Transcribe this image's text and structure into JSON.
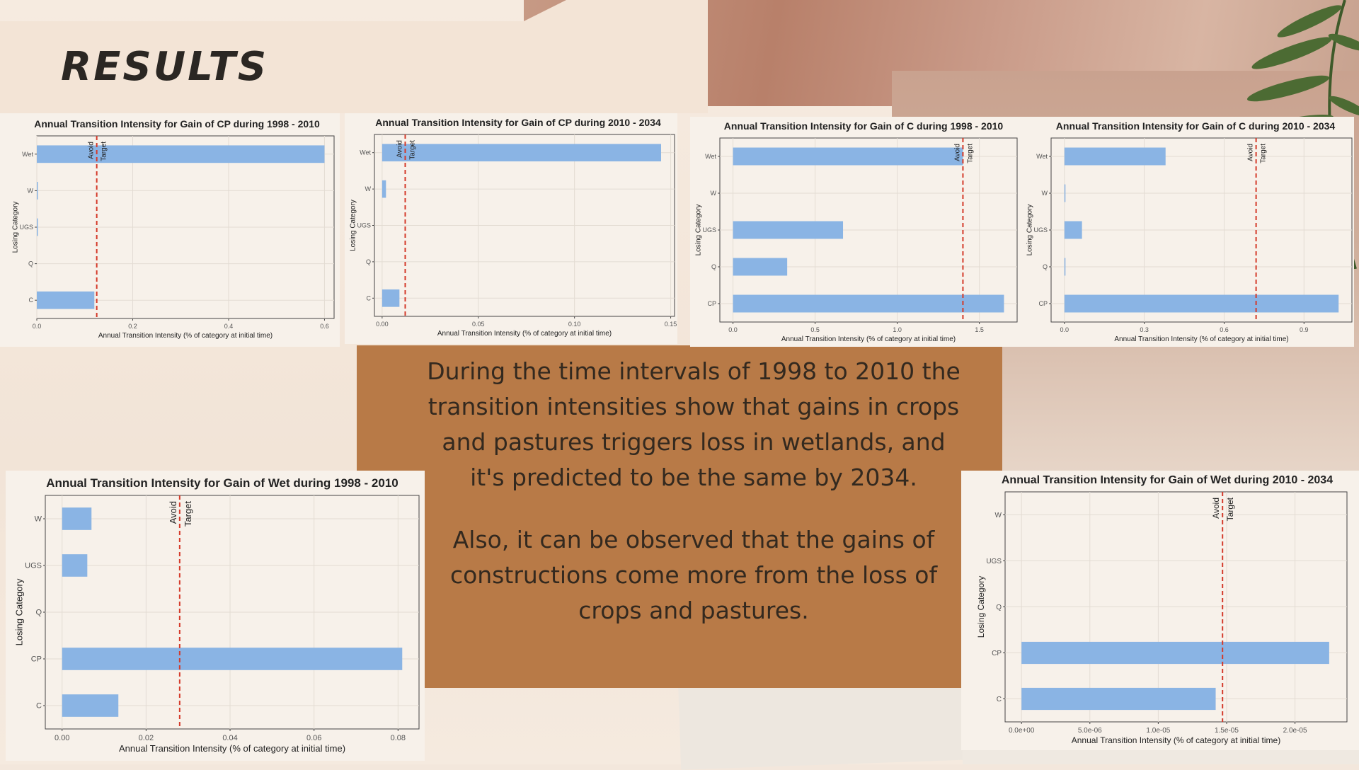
{
  "page": {
    "title": "RESULTS",
    "paragraphs": [
      "During the time intervals of 1998 to 2010 the transition intensities show that gains in crops and pastures triggers loss in wetlands, and it's predicted to be the same by 2034.",
      "Also, it can be observed that the gains of constructions come more from the loss of crops and pastures."
    ],
    "colors": {
      "bar": "#8ab4e4",
      "target_line": "#d43a2a",
      "textbox": "#b87a47"
    }
  },
  "chart_data": [
    {
      "type": "bar",
      "title": "Annual Transition Intensity for Gain of  CP during 1998 - 2010",
      "xlabel": "Annual Transition Intensity (% of category at initial time)",
      "ylabel": "Losing Category",
      "categories": [
        "Wet",
        "W",
        "UGS",
        "Q",
        "C"
      ],
      "values": [
        0.6,
        0.001,
        0.001,
        0,
        0.12
      ],
      "xlim": [
        0,
        0.62
      ],
      "xticks": [
        0,
        0.2,
        0.4,
        0.6
      ],
      "xtick_labels": [
        "0.0",
        "0.2",
        "0.4",
        "0.6"
      ],
      "target": 0.125,
      "annotations": [
        "Avoid",
        "Target"
      ]
    },
    {
      "type": "bar",
      "title": "Annual Transition Intensity for Gain of  CP during 2010 - 2034",
      "xlabel": "Annual Transition Intensity (% of category at initial time)",
      "ylabel": "Losing Category",
      "categories": [
        "Wet",
        "W",
        "UGS",
        "Q",
        "C"
      ],
      "values": [
        0.145,
        0.002,
        0,
        0,
        0.009
      ],
      "xlim": [
        -0.004,
        0.152
      ],
      "xticks": [
        0,
        0.05,
        0.1,
        0.15
      ],
      "xtick_labels": [
        "0.00",
        "0.05",
        "0.10",
        "0.15"
      ],
      "target": 0.012,
      "annotations": [
        "Avoid",
        "Target"
      ]
    },
    {
      "type": "bar",
      "title": "Annual Transition Intensity for Gain of  C during 1998 - 2010",
      "xlabel": "Annual Transition Intensity (% of category at initial time)",
      "ylabel": "Losing Category",
      "categories": [
        "Wet",
        "W",
        "UGS",
        "Q",
        "CP"
      ],
      "values": [
        1.4,
        0,
        0.67,
        0.33,
        1.65
      ],
      "xlim": [
        -0.08,
        1.73
      ],
      "xticks": [
        0,
        0.5,
        1.0,
        1.5
      ],
      "xtick_labels": [
        "0.0",
        "0.5",
        "1.0",
        "1.5"
      ],
      "target": 1.4,
      "annotations": [
        "Avoid",
        "Target"
      ]
    },
    {
      "type": "bar",
      "title": "Annual Transition Intensity for Gain of  C during 2010 - 2034",
      "xlabel": "Annual Transition Intensity (% of category at initial time)",
      "ylabel": "Losing Category",
      "categories": [
        "Wet",
        "W",
        "UGS",
        "Q",
        "CP"
      ],
      "values": [
        0.38,
        0.003,
        0.066,
        0.003,
        1.03
      ],
      "xlim": [
        -0.05,
        1.08
      ],
      "xticks": [
        0,
        0.3,
        0.6,
        0.9
      ],
      "xtick_labels": [
        "0.0",
        "0.3",
        "0.6",
        "0.9"
      ],
      "target": 0.72,
      "annotations": [
        "Avoid",
        "Target"
      ]
    },
    {
      "type": "bar",
      "title": "Annual Transition Intensity for Gain of  Wet during 1998 - 2010",
      "xlabel": "Annual Transition Intensity (% of category at initial time)",
      "ylabel": "Losing Category",
      "categories": [
        "W",
        "UGS",
        "Q",
        "CP",
        "C"
      ],
      "values": [
        0.007,
        0.006,
        0,
        0.081,
        0.0134
      ],
      "xlim": [
        -0.004,
        0.085
      ],
      "xticks": [
        0,
        0.02,
        0.04,
        0.06,
        0.08
      ],
      "xtick_labels": [
        "0.00",
        "0.02",
        "0.04",
        "0.06",
        "0.08"
      ],
      "target": 0.028,
      "annotations": [
        "Avoid",
        "Target"
      ]
    },
    {
      "type": "bar",
      "title": "Annual Transition Intensity for Gain of  Wet during 2010 - 2034",
      "xlabel": "Annual Transition Intensity (% of category at initial time)",
      "ylabel": "Losing Category",
      "categories": [
        "W",
        "UGS",
        "Q",
        "CP",
        "C"
      ],
      "values": [
        0,
        0,
        0,
        2.25e-05,
        1.42e-05
      ],
      "xlim": [
        -1.2e-06,
        2.38e-05
      ],
      "xticks": [
        0,
        5e-06,
        1e-05,
        1.5e-05,
        2e-05
      ],
      "xtick_labels": [
        "0.0e+00",
        "5.0e-06",
        "1.0e-05",
        "1.5e-05",
        "2.0e-05"
      ],
      "target": 1.47e-05,
      "annotations": [
        "Avoid",
        "Target"
      ]
    }
  ]
}
